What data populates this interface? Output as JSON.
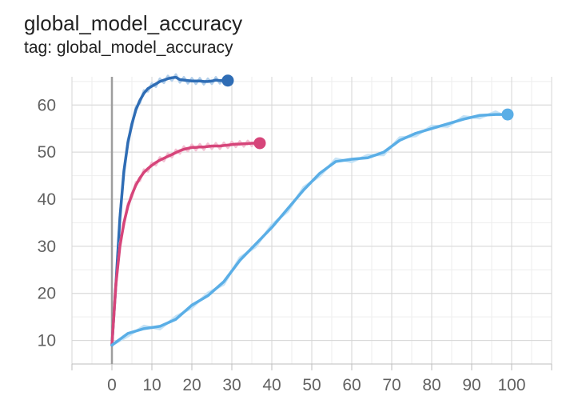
{
  "header": {
    "title": "global_model_accuracy",
    "subtitle": "tag: global_model_accuracy"
  },
  "chart_data": {
    "type": "line",
    "title": "global_model_accuracy",
    "subtitle": "tag: global_model_accuracy",
    "xlabel": "",
    "ylabel": "",
    "xlim": [
      -10,
      110
    ],
    "ylim": [
      5,
      66
    ],
    "x_ticks": [
      0,
      10,
      20,
      30,
      40,
      50,
      60,
      70,
      80,
      90,
      100
    ],
    "y_ticks": [
      10,
      20,
      30,
      40,
      50,
      60
    ],
    "grid": true,
    "smoothing": true,
    "series": [
      {
        "color": "#2f6db5",
        "raw_color": "#b3cfea",
        "x": [
          0,
          1,
          2,
          3,
          4,
          5,
          6,
          7,
          8,
          9,
          10,
          11,
          12,
          13,
          14,
          15,
          16,
          17,
          18,
          19,
          20,
          21,
          22,
          23,
          24,
          25,
          26,
          27,
          28,
          29
        ],
        "y": [
          9,
          22,
          36,
          46,
          52,
          56,
          59,
          61,
          62.5,
          63.5,
          64,
          64.5,
          65,
          65.3,
          65.6,
          65.8,
          65.9,
          65.4,
          65.3,
          65.2,
          65.1,
          65.1,
          65.1,
          65.0,
          65.0,
          65.1,
          65.3,
          65.2,
          65.2,
          65.2
        ]
      },
      {
        "color": "#d6457a",
        "raw_color": "#f3c1d3",
        "x": [
          0,
          1,
          2,
          3,
          4,
          5,
          6,
          7,
          8,
          9,
          10,
          11,
          12,
          13,
          14,
          15,
          16,
          17,
          18,
          19,
          20,
          21,
          22,
          23,
          24,
          25,
          26,
          27,
          28,
          29,
          30,
          31,
          32,
          33,
          34,
          35,
          36,
          37
        ],
        "y": [
          9,
          22,
          30,
          35,
          38.5,
          41,
          43,
          44.5,
          45.7,
          46.5,
          47.2,
          47.8,
          48.3,
          48.7,
          49.1,
          49.5,
          49.9,
          50.3,
          50.6,
          50.8,
          51.0,
          51.0,
          51.1,
          51.1,
          51.2,
          51.3,
          51.3,
          51.3,
          51.4,
          51.5,
          51.6,
          51.7,
          51.7,
          51.8,
          51.8,
          51.9,
          51.9,
          51.9
        ]
      },
      {
        "color": "#5aaee6",
        "raw_color": "#c6e3f6",
        "x": [
          0,
          4,
          8,
          12,
          16,
          20,
          24,
          28,
          32,
          36,
          40,
          44,
          48,
          52,
          56,
          60,
          64,
          68,
          72,
          76,
          80,
          84,
          88,
          92,
          96,
          99
        ],
        "y": [
          9,
          11.5,
          12.5,
          13,
          14.5,
          17.5,
          19.5,
          22.5,
          27,
          30.5,
          34,
          38,
          42,
          45.5,
          48,
          48.5,
          48.8,
          50,
          52.5,
          54,
          55,
          56,
          57,
          57.8,
          58,
          58
        ]
      }
    ]
  }
}
